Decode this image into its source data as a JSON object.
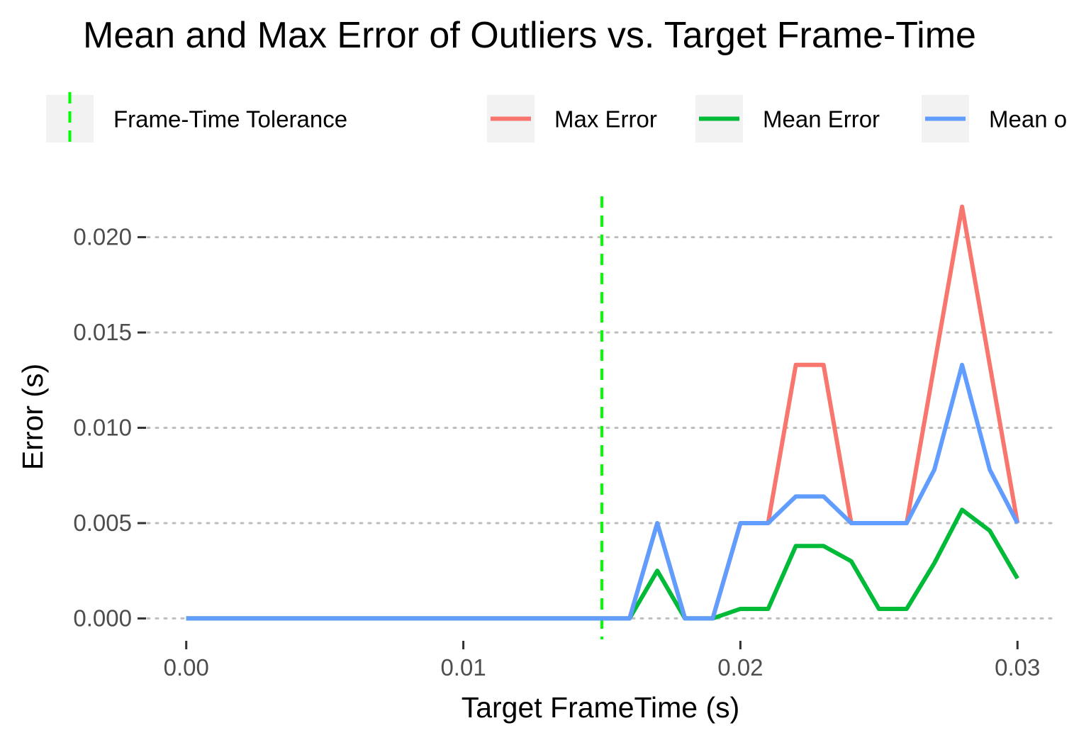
{
  "chart_data": {
    "type": "line",
    "title": "Mean and Max Error of Outliers vs. Target Frame-Time",
    "xlabel": "Target FrameTime (s)",
    "ylabel": "Error (s)",
    "xlim": [
      -0.0014,
      0.0314
    ],
    "ylim": [
      -0.0011,
      0.0227
    ],
    "x_ticks": [
      0.0,
      0.01,
      0.02,
      0.03
    ],
    "x_tick_labels": [
      "0.00",
      "0.01",
      "0.02",
      "0.03"
    ],
    "y_ticks": [
      0.0,
      0.005,
      0.01,
      0.015,
      0.02
    ],
    "y_tick_labels": [
      "0.000",
      "0.005",
      "0.010",
      "0.015",
      "0.020"
    ],
    "grid": "horizontal dotted",
    "legend_position": "top",
    "x": [
      0.0,
      0.001,
      0.002,
      0.003,
      0.004,
      0.005,
      0.006,
      0.007,
      0.008,
      0.009,
      0.01,
      0.011,
      0.012,
      0.013,
      0.014,
      0.015,
      0.016,
      0.017,
      0.018,
      0.019,
      0.02,
      0.021,
      0.022,
      0.023,
      0.024,
      0.025,
      0.026,
      0.027,
      0.028,
      0.029,
      0.03
    ],
    "series": [
      {
        "name": "Max Error",
        "color": "#F8766D",
        "values": [
          0,
          0,
          0,
          0,
          0,
          0,
          0,
          0,
          0,
          0,
          0,
          0,
          0,
          0,
          0,
          0,
          0,
          0.005,
          0,
          0,
          0.005,
          0.005,
          0.0133,
          0.0133,
          0.005,
          0.005,
          0.005,
          0.0133,
          0.0216,
          0.0133,
          0.005
        ]
      },
      {
        "name": "Mean Error",
        "color": "#00BA38",
        "values": [
          0,
          0,
          0,
          0,
          0,
          0,
          0,
          0,
          0,
          0,
          0,
          0,
          0,
          0,
          0,
          0,
          0,
          0.0025,
          0,
          0,
          0.0005,
          0.0005,
          0.0038,
          0.0038,
          0.003,
          0.0005,
          0.0005,
          0.0029,
          0.0057,
          0.0046,
          0.0021
        ]
      },
      {
        "name": "Mean o",
        "color": "#619CFF",
        "values": [
          0,
          0,
          0,
          0,
          0,
          0,
          0,
          0,
          0,
          0,
          0,
          0,
          0,
          0,
          0,
          0,
          0,
          0.005,
          0,
          0,
          0.005,
          0.005,
          0.0064,
          0.0064,
          0.005,
          0.005,
          0.005,
          0.0078,
          0.0133,
          0.0078,
          0.005
        ]
      }
    ],
    "reference_lines": [
      {
        "name": "Frame-Time Tolerance",
        "orientation": "vertical",
        "x": 0.015,
        "style": "dashed",
        "color": "#00FF00"
      }
    ],
    "legend": [
      {
        "label": "Frame-Time Tolerance",
        "kind": "vline",
        "color": "#00FF00"
      },
      {
        "label": "Max Error",
        "kind": "line",
        "color": "#F8766D"
      },
      {
        "label": "Mean Error",
        "kind": "line",
        "color": "#00BA38"
      },
      {
        "label": "Mean o",
        "kind": "line",
        "color": "#619CFF"
      }
    ]
  }
}
